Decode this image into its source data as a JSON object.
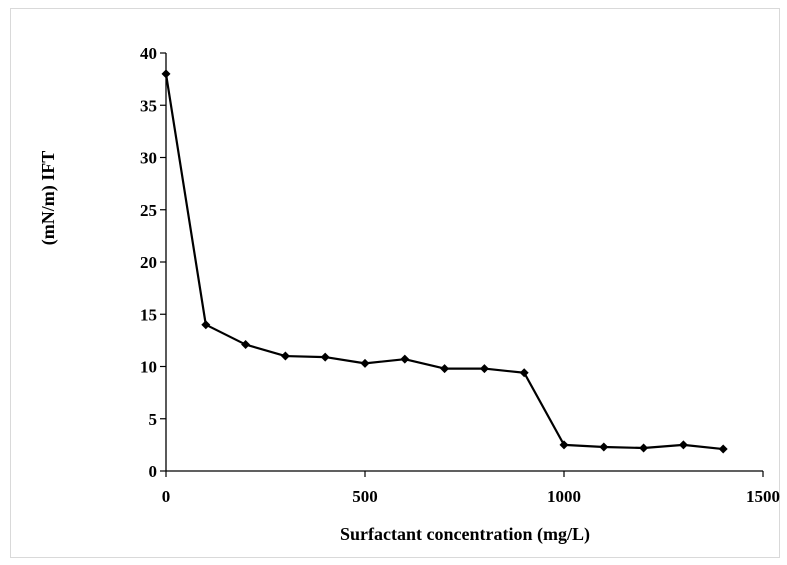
{
  "chart_data": {
    "type": "line",
    "title": "",
    "xlabel": "Surfactant  concentration  (mg/L)",
    "ylabel": "(mN/m)  IFT",
    "xlim": [
      0,
      1500
    ],
    "ylim": [
      0,
      40
    ],
    "xticks": [
      0,
      500,
      1000,
      1500
    ],
    "yticks": [
      0,
      5,
      10,
      15,
      20,
      25,
      30,
      35,
      40
    ],
    "grid": false,
    "legend": "none",
    "series": [
      {
        "color": "#000000",
        "marker": "diamond",
        "x": [
          0,
          100,
          200,
          300,
          400,
          500,
          600,
          700,
          800,
          900,
          1000,
          1100,
          1200,
          1300,
          1400
        ],
        "y": [
          38.0,
          14.0,
          12.1,
          11.0,
          10.9,
          10.3,
          10.7,
          9.8,
          9.8,
          9.4,
          2.5,
          2.3,
          2.2,
          2.5,
          2.1
        ]
      }
    ]
  }
}
